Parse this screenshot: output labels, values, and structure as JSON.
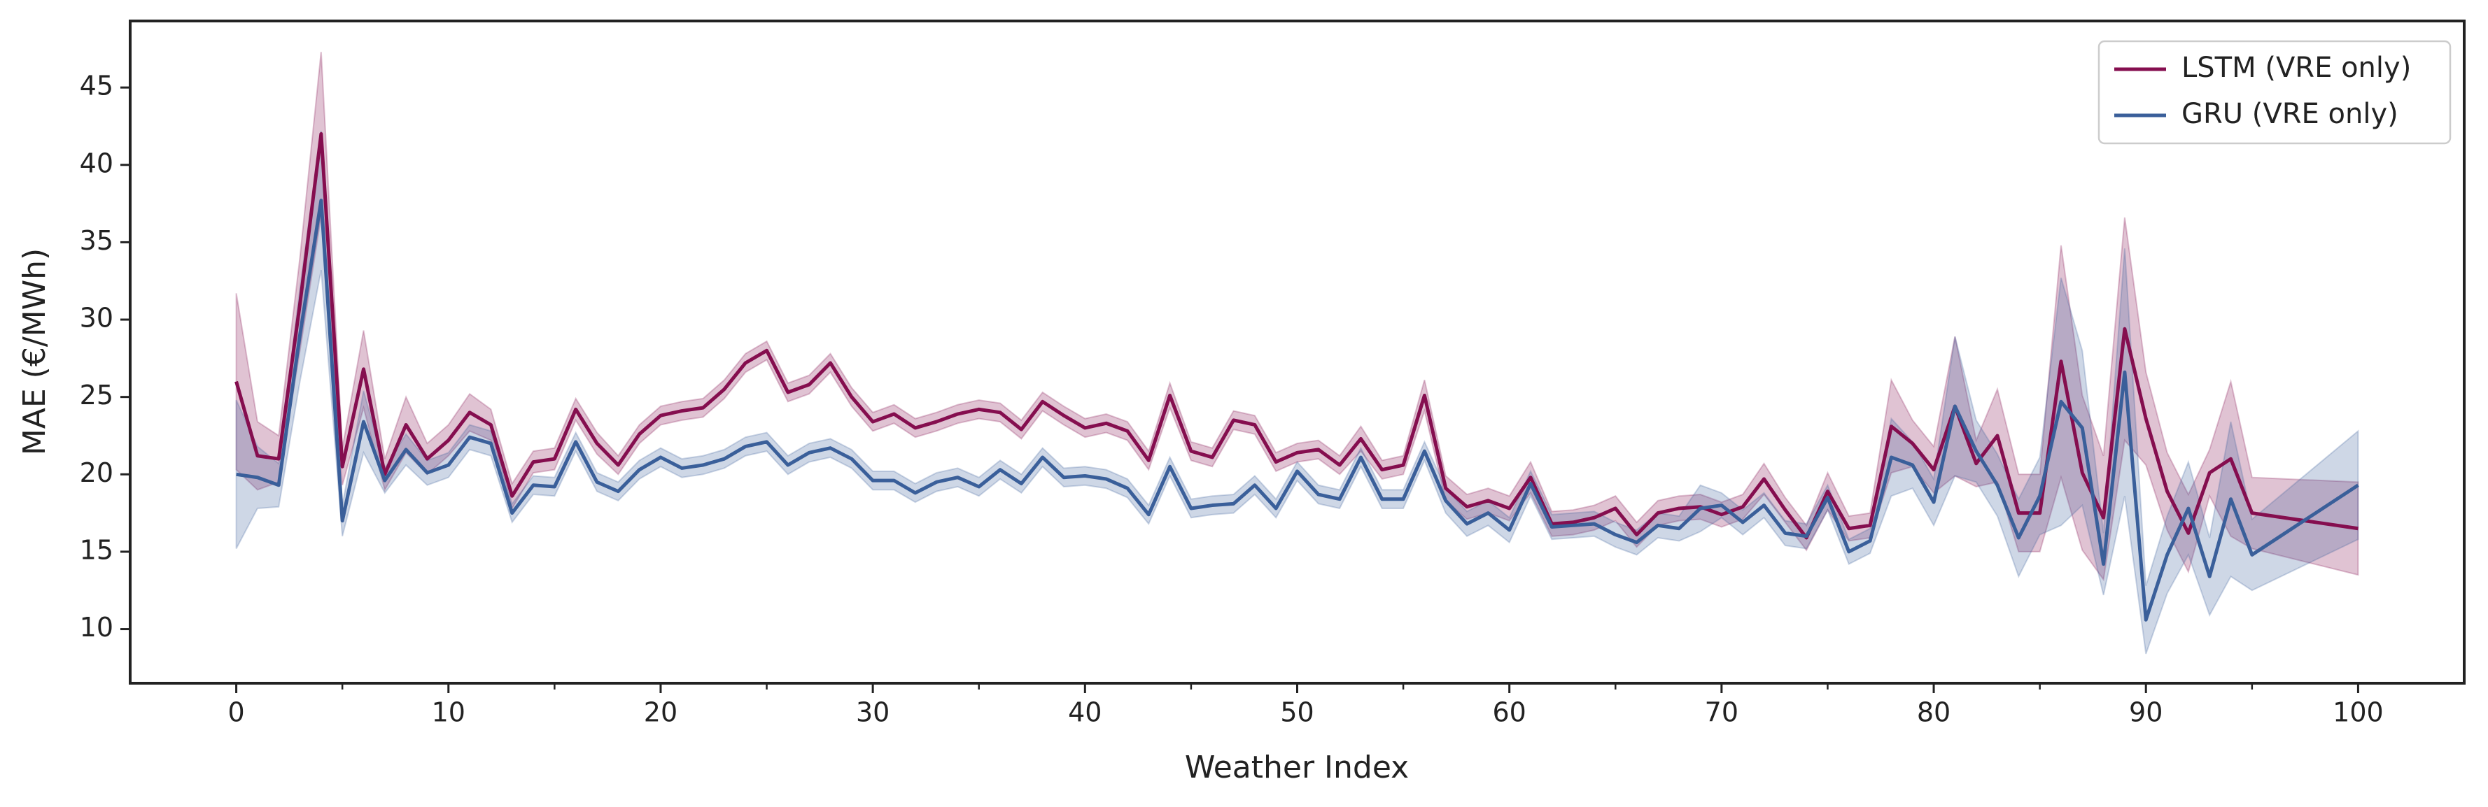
{
  "chart_data": {
    "type": "line",
    "xlabel": "Weather Index",
    "ylabel": "MAE (€/MWh)",
    "x": [
      0,
      1,
      2,
      3,
      4,
      5,
      6,
      7,
      8,
      9,
      10,
      11,
      12,
      13,
      14,
      15,
      16,
      17,
      18,
      19,
      20,
      21,
      22,
      23,
      24,
      25,
      26,
      27,
      28,
      29,
      30,
      31,
      32,
      33,
      34,
      35,
      36,
      37,
      38,
      39,
      40,
      41,
      42,
      43,
      44,
      45,
      46,
      47,
      48,
      49,
      50,
      51,
      52,
      53,
      54,
      55,
      56,
      57,
      58,
      59,
      60,
      61,
      62,
      63,
      64,
      65,
      66,
      67,
      68,
      69,
      70,
      71,
      72,
      73,
      74,
      75,
      76,
      77,
      78,
      79,
      80,
      81,
      82,
      83,
      84,
      85,
      86,
      87,
      88,
      89,
      90,
      91,
      92,
      93,
      94,
      95,
      100
    ],
    "series": [
      {
        "name": "LSTM (VRE only)",
        "color": "#850e4f",
        "values": [
          26,
          21.2,
          21,
          31,
          42,
          20.5,
          26.8,
          20,
          23.2,
          21,
          22.2,
          24,
          23.2,
          18.6,
          20.8,
          21,
          24.2,
          22,
          20.6,
          22.6,
          23.8,
          24.1,
          24.3,
          25.5,
          27.2,
          28,
          25.3,
          25.8,
          27.2,
          25,
          23.4,
          23.9,
          23,
          23.4,
          23.9,
          24.2,
          24,
          22.9,
          24.7,
          23.8,
          23,
          23.3,
          22.8,
          20.9,
          25.1,
          21.5,
          21.1,
          23.5,
          23.2,
          20.8,
          21.4,
          21.6,
          20.6,
          22.3,
          20.3,
          20.6,
          25.1,
          19.1,
          17.9,
          18.3,
          17.8,
          19.8,
          16.8,
          16.9,
          17.2,
          17.8,
          16.1,
          17.5,
          17.8,
          17.9,
          17.4,
          17.9,
          19.7,
          17.7,
          15.9,
          18.9,
          16.5,
          16.7,
          23.1,
          22,
          20.3,
          24.4,
          20.7,
          22.5,
          17.5,
          17.5,
          27.3,
          20.1,
          17.2,
          29.4,
          23.6,
          18.9,
          16.2,
          20.1,
          21,
          17.5,
          16.5
        ],
        "errors": [
          5.7,
          2.2,
          1.5,
          3,
          5.3,
          1.2,
          2.5,
          1,
          1.8,
          1,
          1,
          1.2,
          1,
          0.8,
          0.7,
          0.7,
          0.7,
          0.7,
          0.6,
          0.6,
          0.6,
          0.6,
          0.6,
          0.6,
          0.6,
          0.6,
          0.6,
          0.6,
          0.6,
          0.6,
          0.6,
          0.6,
          0.6,
          0.6,
          0.6,
          0.6,
          0.6,
          0.6,
          0.6,
          0.6,
          0.6,
          0.6,
          0.6,
          0.6,
          0.8,
          0.6,
          0.6,
          0.6,
          0.6,
          0.6,
          0.6,
          0.6,
          0.6,
          0.8,
          0.6,
          0.6,
          1,
          0.8,
          0.8,
          0.8,
          0.8,
          1,
          0.8,
          0.8,
          0.8,
          0.8,
          0.8,
          0.8,
          0.8,
          0.8,
          0.8,
          0.8,
          1,
          0.8,
          0.8,
          1.2,
          0.8,
          0.8,
          3,
          1.5,
          1.5,
          4.5,
          1.5,
          3,
          2.5,
          2.5,
          7.5,
          5,
          4,
          7.2,
          3,
          2.5,
          2.5,
          1.5,
          5,
          2.3,
          3
        ]
      },
      {
        "name": "GRU (VRE only)",
        "color": "#3a5f9a",
        "values": [
          20,
          19.8,
          19.3,
          29,
          37.7,
          17,
          23.4,
          19.6,
          21.6,
          20.1,
          20.6,
          22.4,
          22,
          17.5,
          19.3,
          19.2,
          22.1,
          19.5,
          18.9,
          20.3,
          21.1,
          20.4,
          20.6,
          21,
          21.8,
          22.1,
          20.6,
          21.4,
          21.7,
          21,
          19.6,
          19.6,
          18.8,
          19.5,
          19.8,
          19.2,
          20.3,
          19.4,
          21.1,
          19.8,
          19.9,
          19.7,
          19.1,
          17.4,
          20.5,
          17.8,
          18,
          18.1,
          19.3,
          17.8,
          20.2,
          18.7,
          18.4,
          21.1,
          18.4,
          18.4,
          21.5,
          18.3,
          16.8,
          17.5,
          16.4,
          19.4,
          16.6,
          16.7,
          16.8,
          16.1,
          15.6,
          16.7,
          16.5,
          17.8,
          18,
          16.9,
          18,
          16.2,
          16,
          18.5,
          15,
          15.7,
          21.1,
          20.6,
          18.2,
          24.4,
          21.5,
          19.3,
          15.9,
          18.6,
          24.7,
          23,
          14.2,
          26.6,
          10.6,
          14.8,
          17.8,
          13.4,
          18.4,
          14.8,
          19.3
        ],
        "errors": [
          4.8,
          2,
          1.4,
          3,
          4.5,
          1,
          2,
          0.8,
          1,
          0.8,
          0.8,
          0.8,
          0.8,
          0.6,
          0.6,
          0.6,
          0.6,
          0.6,
          0.6,
          0.6,
          0.6,
          0.6,
          0.6,
          0.6,
          0.6,
          0.6,
          0.6,
          0.6,
          0.6,
          0.6,
          0.6,
          0.6,
          0.6,
          0.6,
          0.6,
          0.6,
          0.6,
          0.6,
          0.6,
          0.6,
          0.6,
          0.6,
          0.6,
          0.6,
          0.6,
          0.6,
          0.6,
          0.6,
          0.6,
          0.6,
          0.6,
          0.6,
          0.6,
          0.6,
          0.6,
          0.6,
          0.6,
          0.8,
          0.8,
          0.8,
          0.8,
          0.8,
          0.8,
          0.8,
          0.8,
          0.8,
          0.8,
          0.8,
          0.8,
          1.5,
          0.8,
          0.8,
          0.8,
          0.8,
          0.8,
          0.8,
          0.8,
          0.8,
          2.5,
          1.5,
          1.5,
          4.5,
          2,
          2,
          2.5,
          2.5,
          8,
          5,
          2,
          8,
          2.2,
          2.5,
          3,
          2.5,
          5,
          2.3,
          3.5
        ]
      }
    ],
    "xlim": [
      -5,
      105
    ],
    "ylim": [
      6.5,
      49.3
    ],
    "xticks": [
      0,
      10,
      20,
      30,
      40,
      50,
      60,
      70,
      80,
      90,
      100
    ],
    "xminorticks": [
      5,
      15,
      25,
      35,
      45,
      55,
      65,
      75,
      85,
      95
    ],
    "yticks": [
      10,
      15,
      20,
      25,
      30,
      35,
      40,
      45
    ],
    "legend": "upper right",
    "band_opacity": 0.25
  }
}
